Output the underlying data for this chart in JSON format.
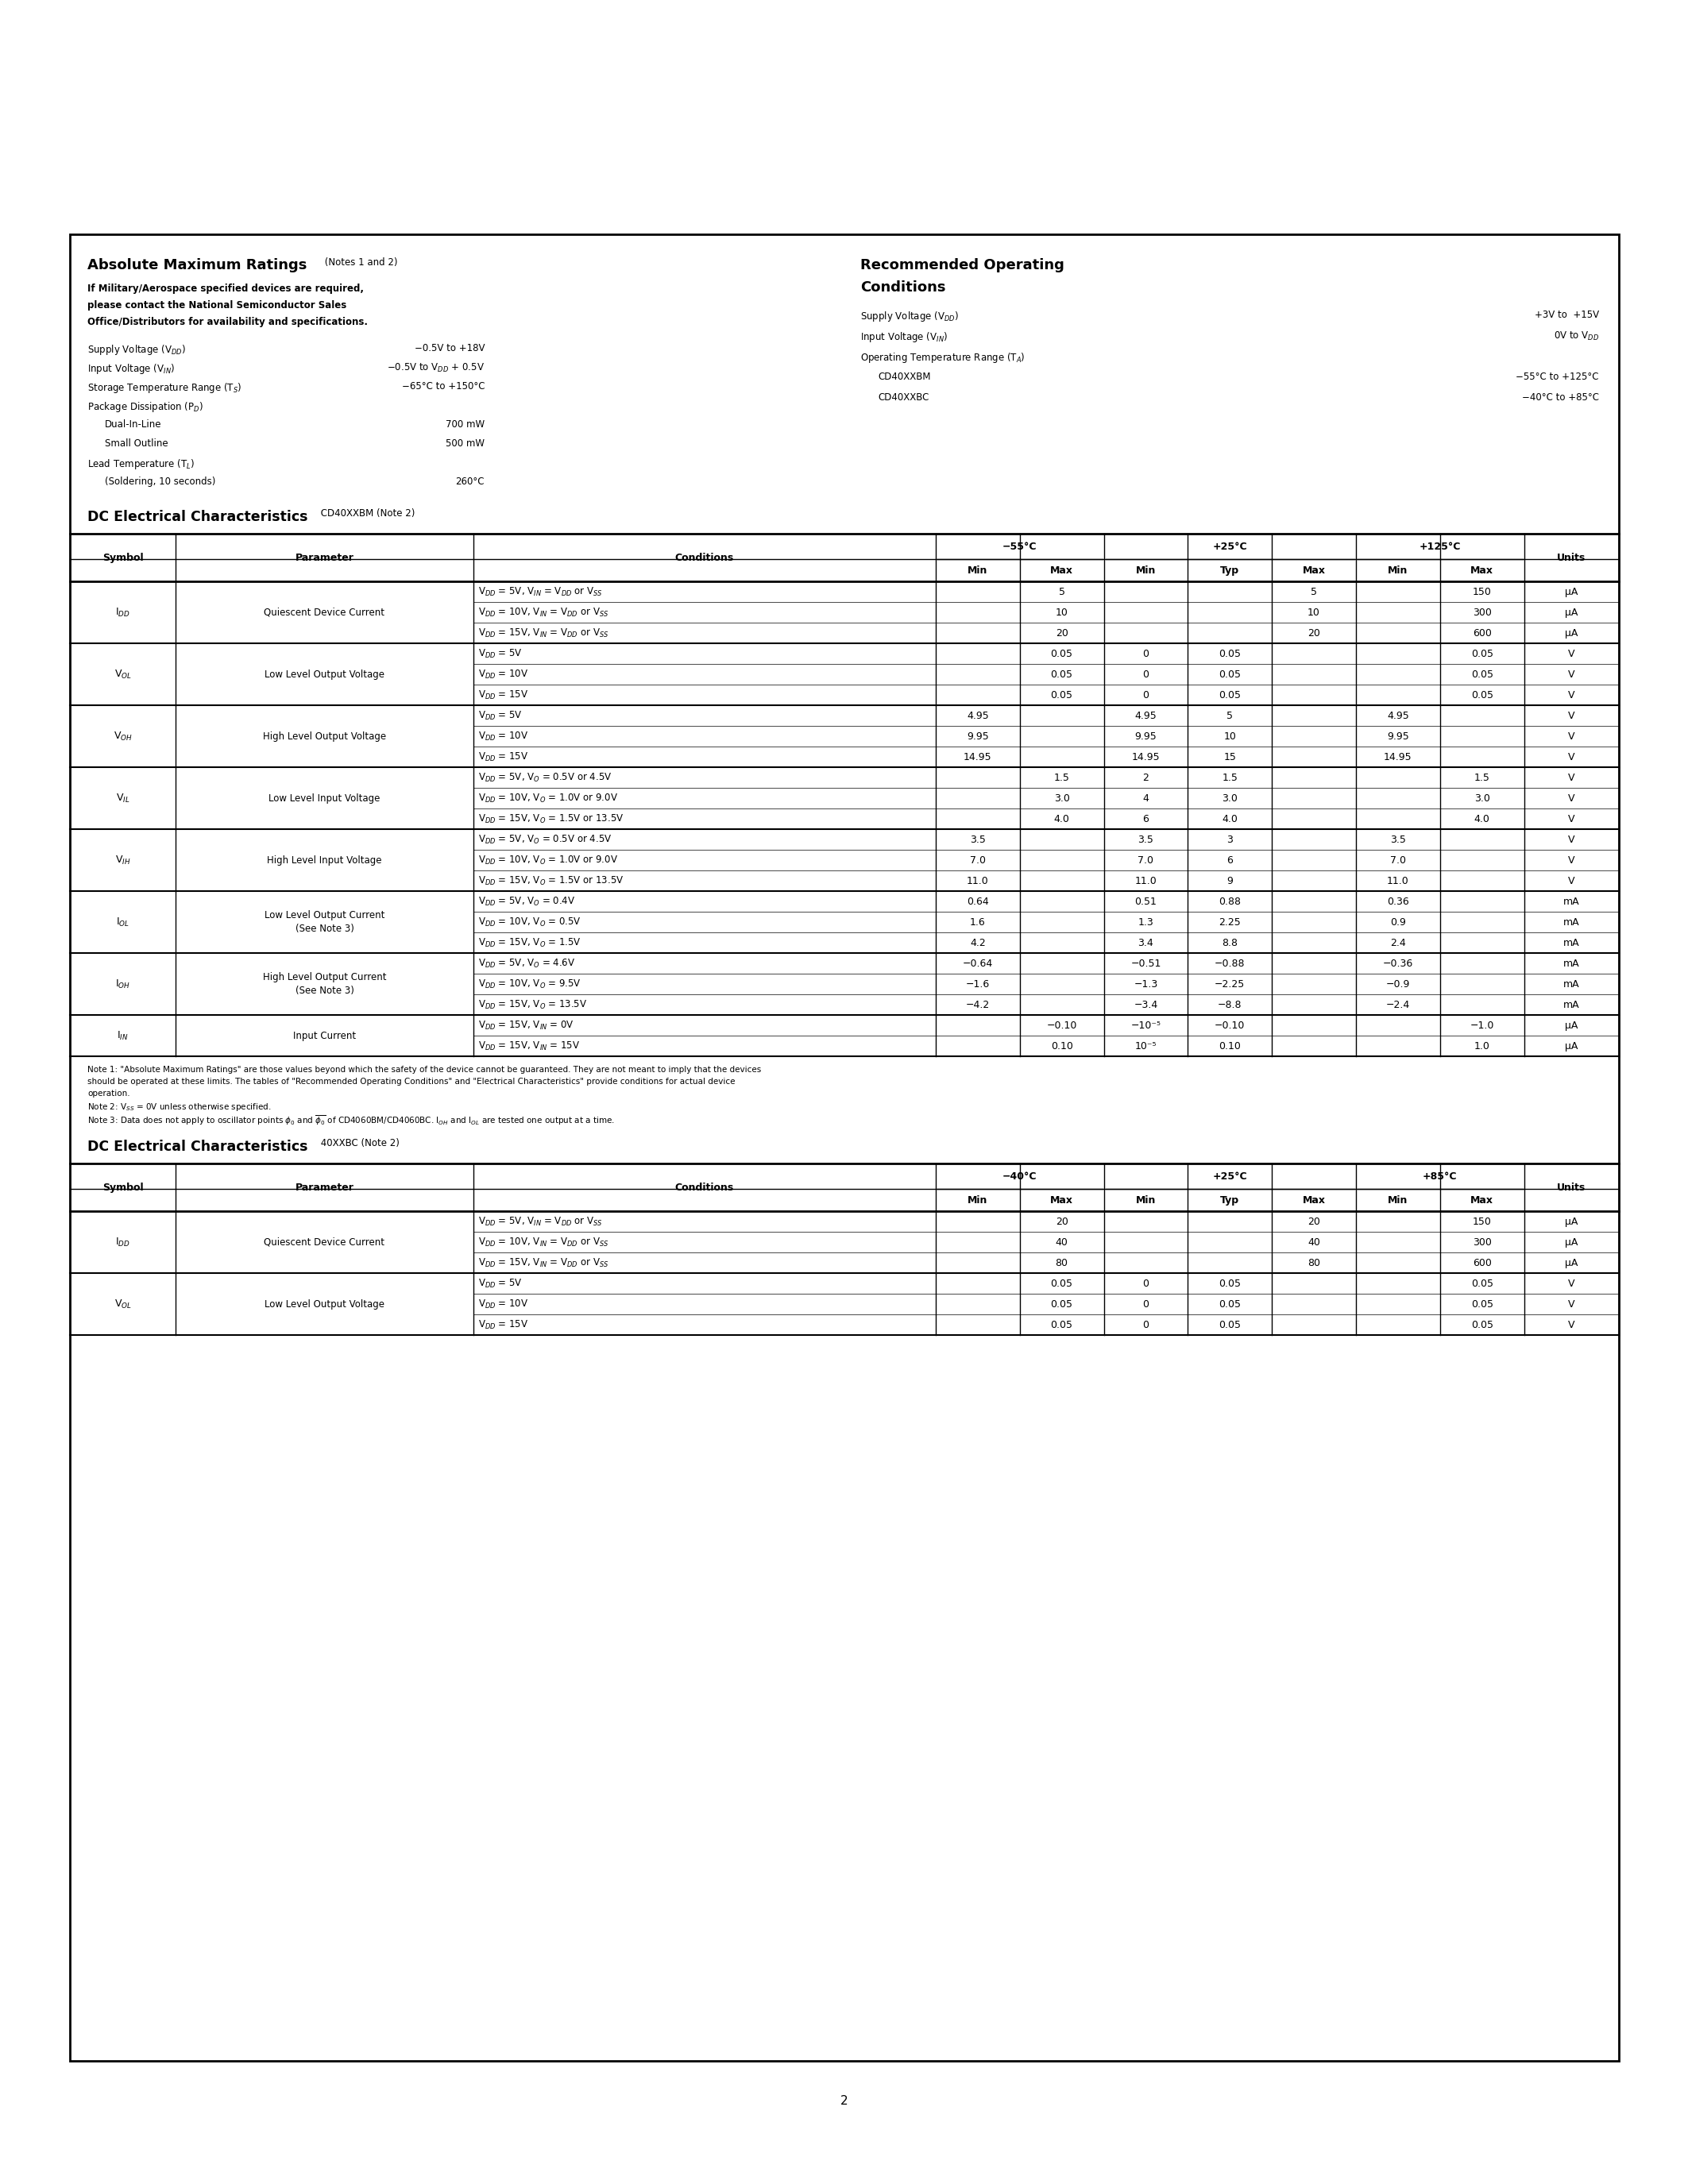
{
  "abs_params": [
    [
      "Supply Voltage (V$_{DD}$)",
      "−0.5V to +18V"
    ],
    [
      "Input Voltage (V$_{IN}$)",
      "−0.5V to V$_{DD}$ + 0.5V"
    ],
    [
      "Storage Temperature Range (T$_S$)",
      "−65°C to +150°C"
    ],
    [
      "Package Dissipation (P$_D$)",
      ""
    ],
    [
      "   Dual-In-Line",
      "700 mW"
    ],
    [
      "   Small Outline",
      "500 mW"
    ],
    [
      "Lead Temperature (T$_L$)",
      ""
    ],
    [
      "   (Soldering, 10 seconds)",
      "260°C"
    ]
  ],
  "roc_params": [
    [
      "Supply Voltage (V$_{DD}$)",
      "+3V to  +15V"
    ],
    [
      "Input Voltage (V$_{IN}$)",
      "0V to V$_{DD}$"
    ],
    [
      "Operating Temperature Range (T$_A$)",
      ""
    ],
    [
      "   CD40XXBM",
      "−55°C to +125°C"
    ],
    [
      "   CD40XXBC",
      "−40°C to +85°C"
    ]
  ],
  "dc_rows": [
    {
      "symbol": "I$_{DD}$",
      "parameter": "Quiescent Device Current",
      "conditions": [
        "V$_{DD}$ = 5V, V$_{IN}$ = V$_{DD}$ or V$_{SS}$",
        "V$_{DD}$ = 10V, V$_{IN}$ = V$_{DD}$ or V$_{SS}$",
        "V$_{DD}$ = 15V, V$_{IN}$ = V$_{DD}$ or V$_{SS}$"
      ],
      "data": [
        [
          "",
          "5",
          "",
          "",
          "5",
          "",
          "150"
        ],
        [
          "",
          "10",
          "",
          "",
          "10",
          "",
          "300"
        ],
        [
          "",
          "20",
          "",
          "",
          "20",
          "",
          "600"
        ]
      ],
      "units": [
        "μA",
        "μA",
        "μA"
      ]
    },
    {
      "symbol": "V$_{OL}$",
      "parameter": "Low Level Output Voltage",
      "conditions": [
        "V$_{DD}$ = 5V",
        "V$_{DD}$ = 10V",
        "V$_{DD}$ = 15V"
      ],
      "data": [
        [
          "",
          "0.05",
          "0",
          "0.05",
          "",
          "",
          "0.05"
        ],
        [
          "",
          "0.05",
          "0",
          "0.05",
          "",
          "",
          "0.05"
        ],
        [
          "",
          "0.05",
          "0",
          "0.05",
          "",
          "",
          "0.05"
        ]
      ],
      "units": [
        "V",
        "V",
        "V"
      ]
    },
    {
      "symbol": "V$_{OH}$",
      "parameter": "High Level Output Voltage",
      "conditions": [
        "V$_{DD}$ = 5V",
        "V$_{DD}$ = 10V",
        "V$_{DD}$ = 15V"
      ],
      "data": [
        [
          "4.95",
          "",
          "4.95",
          "5",
          "",
          "4.95",
          ""
        ],
        [
          "9.95",
          "",
          "9.95",
          "10",
          "",
          "9.95",
          ""
        ],
        [
          "14.95",
          "",
          "14.95",
          "15",
          "",
          "14.95",
          ""
        ]
      ],
      "units": [
        "V",
        "V",
        "V"
      ]
    },
    {
      "symbol": "V$_{IL}$",
      "parameter": "Low Level Input Voltage",
      "conditions": [
        "V$_{DD}$ = 5V, V$_O$ = 0.5V or 4.5V",
        "V$_{DD}$ = 10V, V$_O$ = 1.0V or 9.0V",
        "V$_{DD}$ = 15V, V$_O$ = 1.5V or 13.5V"
      ],
      "data": [
        [
          "",
          "1.5",
          "2",
          "1.5",
          "",
          "",
          "1.5"
        ],
        [
          "",
          "3.0",
          "4",
          "3.0",
          "",
          "",
          "3.0"
        ],
        [
          "",
          "4.0",
          "6",
          "4.0",
          "",
          "",
          "4.0"
        ]
      ],
      "units": [
        "V",
        "V",
        "V"
      ]
    },
    {
      "symbol": "V$_{IH}$",
      "parameter": "High Level Input Voltage",
      "conditions": [
        "V$_{DD}$ = 5V, V$_O$ = 0.5V or 4.5V",
        "V$_{DD}$ = 10V, V$_O$ = 1.0V or 9.0V",
        "V$_{DD}$ = 15V, V$_O$ = 1.5V or 13.5V"
      ],
      "data": [
        [
          "3.5",
          "",
          "3.5",
          "3",
          "",
          "3.5",
          ""
        ],
        [
          "7.0",
          "",
          "7.0",
          "6",
          "",
          "7.0",
          ""
        ],
        [
          "11.0",
          "",
          "11.0",
          "9",
          "",
          "11.0",
          ""
        ]
      ],
      "units": [
        "V",
        "V",
        "V"
      ]
    },
    {
      "symbol": "I$_{OL}$",
      "parameter": "Low Level Output Current\n(See Note 3)",
      "conditions": [
        "V$_{DD}$ = 5V, V$_O$ = 0.4V",
        "V$_{DD}$ = 10V, V$_O$ = 0.5V",
        "V$_{DD}$ = 15V, V$_O$ = 1.5V"
      ],
      "data": [
        [
          "0.64",
          "",
          "0.51",
          "0.88",
          "",
          "0.36",
          ""
        ],
        [
          "1.6",
          "",
          "1.3",
          "2.25",
          "",
          "0.9",
          ""
        ],
        [
          "4.2",
          "",
          "3.4",
          "8.8",
          "",
          "2.4",
          ""
        ]
      ],
      "units": [
        "mA",
        "mA",
        "mA"
      ]
    },
    {
      "symbol": "I$_{OH}$",
      "parameter": "High Level Output Current\n(See Note 3)",
      "conditions": [
        "V$_{DD}$ = 5V, V$_O$ = 4.6V",
        "V$_{DD}$ = 10V, V$_O$ = 9.5V",
        "V$_{DD}$ = 15V, V$_O$ = 13.5V"
      ],
      "data": [
        [
          "−0.64",
          "",
          "−0.51",
          "−0.88",
          "",
          "−0.36",
          ""
        ],
        [
          "−1.6",
          "",
          "−1.3",
          "−2.25",
          "",
          "−0.9",
          ""
        ],
        [
          "−4.2",
          "",
          "−3.4",
          "−8.8",
          "",
          "−2.4",
          ""
        ]
      ],
      "units": [
        "mA",
        "mA",
        "mA"
      ]
    },
    {
      "symbol": "I$_{IN}$",
      "parameter": "Input Current",
      "conditions": [
        "V$_{DD}$ = 15V, V$_{IN}$ = 0V",
        "V$_{DD}$ = 15V, V$_{IN}$ = 15V"
      ],
      "data": [
        [
          "",
          "−0.10",
          "−10⁻⁵",
          "−0.10",
          "",
          "",
          "−1.0"
        ],
        [
          "",
          "0.10",
          "10⁻⁵",
          "0.10",
          "",
          "",
          "1.0"
        ]
      ],
      "units": [
        "μA",
        "μA"
      ]
    }
  ],
  "dc2_rows": [
    {
      "symbol": "I$_{DD}$",
      "parameter": "Quiescent Device Current",
      "conditions": [
        "V$_{DD}$ = 5V, V$_{IN}$ = V$_{DD}$ or V$_{SS}$",
        "V$_{DD}$ = 10V, V$_{IN}$ = V$_{DD}$ or V$_{SS}$",
        "V$_{DD}$ = 15V, V$_{IN}$ = V$_{DD}$ or V$_{SS}$"
      ],
      "data": [
        [
          "",
          "20",
          "",
          "",
          "20",
          "",
          "150"
        ],
        [
          "",
          "40",
          "",
          "",
          "40",
          "",
          "300"
        ],
        [
          "",
          "80",
          "",
          "",
          "80",
          "",
          "600"
        ]
      ],
      "units": [
        "μA",
        "μA",
        "μA"
      ]
    },
    {
      "symbol": "V$_{OL}$",
      "parameter": "Low Level Output Voltage",
      "conditions": [
        "V$_{DD}$ = 5V",
        "V$_{DD}$ = 10V",
        "V$_{DD}$ = 15V"
      ],
      "data": [
        [
          "",
          "0.05",
          "0",
          "0.05",
          "",
          "",
          "0.05"
        ],
        [
          "",
          "0.05",
          "0",
          "0.05",
          "",
          "",
          "0.05"
        ],
        [
          "",
          "0.05",
          "0",
          "0.05",
          "",
          "",
          "0.05"
        ]
      ],
      "units": [
        "V",
        "V",
        "V"
      ]
    }
  ]
}
